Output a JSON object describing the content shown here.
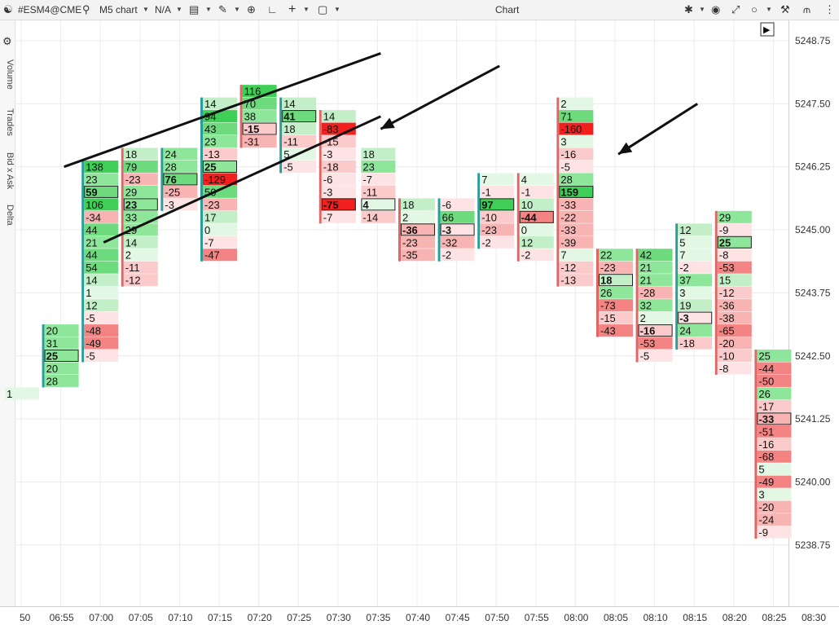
{
  "toolbar": {
    "symbol": "#ESM4@CME",
    "chart_type": "M5 chart",
    "template": "N/A",
    "title": "Chart"
  },
  "side_panels": [
    "Volume",
    "Trades",
    "Bid x Ask",
    "Delta"
  ],
  "colors": {
    "green_strong": "#3fcf57",
    "green_mid": "#8ee69a",
    "green_light": "#e3f7e5",
    "red_strong": "#f21f1f",
    "red_mid": "#f48383",
    "red_light": "#fde3e3",
    "teal_bar": "#2a9d9a",
    "red_bar": "#e06666",
    "poc_border": "#222222"
  },
  "chart_data": {
    "type": "table",
    "y_axis": {
      "ticks": [
        "5248.75",
        "5247.50",
        "5246.25",
        "5245.00",
        "5243.75",
        "5242.50",
        "5241.25",
        "5240.00",
        "5238.75"
      ],
      "tick_values": [
        5248.75,
        5247.5,
        5246.25,
        5245.0,
        5243.75,
        5242.5,
        5241.25,
        5240.0,
        5238.75
      ],
      "row_step": 0.25
    },
    "x_axis": {
      "ticks": [
        "50",
        "06:55",
        "07:00",
        "07:05",
        "07:10",
        "07:15",
        "07:20",
        "07:25",
        "07:30",
        "07:35",
        "07:40",
        "07:45",
        "07:50",
        "07:55",
        "08:00",
        "08:05",
        "08:10",
        "08:15",
        "08:20",
        "08:25",
        "08:30"
      ]
    },
    "bars": [
      {
        "time": "06:50",
        "top": 5242.25,
        "values": [
          "",
          "",
          "1"
        ],
        "poc": -1,
        "dir": "none"
      },
      {
        "time": "06:55",
        "top": 5243.0,
        "values": [
          "20",
          "31",
          "25",
          "20",
          "28"
        ],
        "poc": 2,
        "dir": "up"
      },
      {
        "time": "07:00",
        "top": 5246.25,
        "values": [
          "138",
          "23",
          "59",
          "106",
          "-34",
          "44",
          "21",
          "44",
          "54",
          "14",
          "1",
          "12",
          "-5",
          "-48",
          "-49",
          "-5"
        ],
        "poc": 2,
        "dir": "up"
      },
      {
        "time": "07:05",
        "top": 5246.5,
        "values": [
          "18",
          "79",
          "-23",
          "29",
          "23",
          "33",
          "29",
          "14",
          "2",
          "-11",
          "-12"
        ],
        "poc": 4,
        "dir": "down"
      },
      {
        "time": "07:10",
        "top": 5246.5,
        "values": [
          "24",
          "28",
          "76",
          "-25",
          "-3"
        ],
        "poc": 2,
        "dir": "up"
      },
      {
        "time": "07:15",
        "top": 5247.5,
        "values": [
          "14",
          "94",
          "43",
          "23",
          "-13",
          "25",
          "-129",
          "50",
          "-23",
          "17",
          "0",
          "-7",
          "-47"
        ],
        "poc": 5,
        "dir": "up"
      },
      {
        "time": "07:20",
        "top": 5247.75,
        "values": [
          "116",
          "70",
          "38",
          "-15",
          "-31"
        ],
        "poc": 3,
        "dir": "down"
      },
      {
        "time": "07:25",
        "top": 5247.5,
        "values": [
          "14",
          "41",
          "18",
          "-11",
          "5",
          "-5"
        ],
        "poc": 1,
        "dir": "up"
      },
      {
        "time": "07:30",
        "top": 5247.25,
        "values": [
          "14",
          "-83",
          "-15",
          "-3",
          "-18",
          "-6",
          "-3",
          "-75",
          "-7"
        ],
        "poc": 7,
        "dir": "down"
      },
      {
        "time": "07:35",
        "top": 5246.5,
        "values": [
          "18",
          "23",
          "-7",
          "-11",
          "4",
          "-14"
        ],
        "poc": 4,
        "dir": "none"
      },
      {
        "time": "07:40",
        "top": 5245.5,
        "values": [
          "18",
          "2",
          "-36",
          "-23",
          "-35"
        ],
        "poc": 2,
        "dir": "down"
      },
      {
        "time": "07:45",
        "top": 5245.5,
        "values": [
          "-6",
          "66",
          "-3",
          "-32",
          "-2"
        ],
        "poc": 2,
        "dir": "up"
      },
      {
        "time": "07:50",
        "top": 5246.0,
        "values": [
          "7",
          "-1",
          "97",
          "-10",
          "-23",
          "-2"
        ],
        "poc": 2,
        "dir": "up"
      },
      {
        "time": "07:55",
        "top": 5246.0,
        "values": [
          "4",
          "-1",
          "10",
          "-44",
          "0",
          "12",
          "-2"
        ],
        "poc": 3,
        "dir": "down"
      },
      {
        "time": "08:00",
        "top": 5247.5,
        "values": [
          "2",
          "71",
          "-160",
          "3",
          "-16",
          "-5",
          "28",
          "159",
          "-33",
          "-22",
          "-33",
          "-39",
          "7",
          "-12",
          "-13"
        ],
        "poc": 7,
        "dir": "down"
      },
      {
        "time": "08:05",
        "top": 5244.5,
        "values": [
          "22",
          "-23",
          "18",
          "26",
          "-73",
          "-15",
          "-43"
        ],
        "poc": 2,
        "dir": "down"
      },
      {
        "time": "08:10",
        "top": 5244.5,
        "values": [
          "42",
          "21",
          "21",
          "-28",
          "32",
          "2",
          "-16",
          "-53",
          "-5"
        ],
        "poc": 6,
        "dir": "down"
      },
      {
        "time": "08:15",
        "top": 5245.0,
        "values": [
          "12",
          "5",
          "7",
          "-2",
          "37",
          "3",
          "19",
          "-3",
          "24",
          "-18"
        ],
        "poc": 7,
        "dir": "up"
      },
      {
        "time": "08:20",
        "top": 5245.25,
        "values": [
          "29",
          "-9",
          "25",
          "-8",
          "-53",
          "15",
          "-12",
          "-36",
          "-38",
          "-65",
          "-20",
          "-10",
          "-8"
        ],
        "poc": 2,
        "dir": "down"
      },
      {
        "time": "08:25",
        "top": 5242.5,
        "values": [
          "25",
          "-44",
          "-50",
          "26",
          "-17",
          "-33",
          "-51",
          "-16",
          "-68",
          "5",
          "-49",
          "3",
          "-20",
          "-24",
          "-9"
        ],
        "poc": 5,
        "dir": "down"
      }
    ],
    "annotations": {
      "channel_upper": {
        "from": [
          "06:55",
          5246.25
        ],
        "to": [
          "07:35",
          5248.5
        ]
      },
      "channel_lower": {
        "from": [
          "07:00",
          5244.75
        ],
        "to": [
          "07:35",
          5247.25
        ]
      },
      "arrows": [
        {
          "from": [
            "07:50",
            5248.25
          ],
          "to": [
            "07:35",
            5247.0
          ]
        },
        {
          "from": [
            "08:15",
            5247.5
          ],
          "to": [
            "08:05",
            5246.5
          ]
        }
      ]
    }
  }
}
